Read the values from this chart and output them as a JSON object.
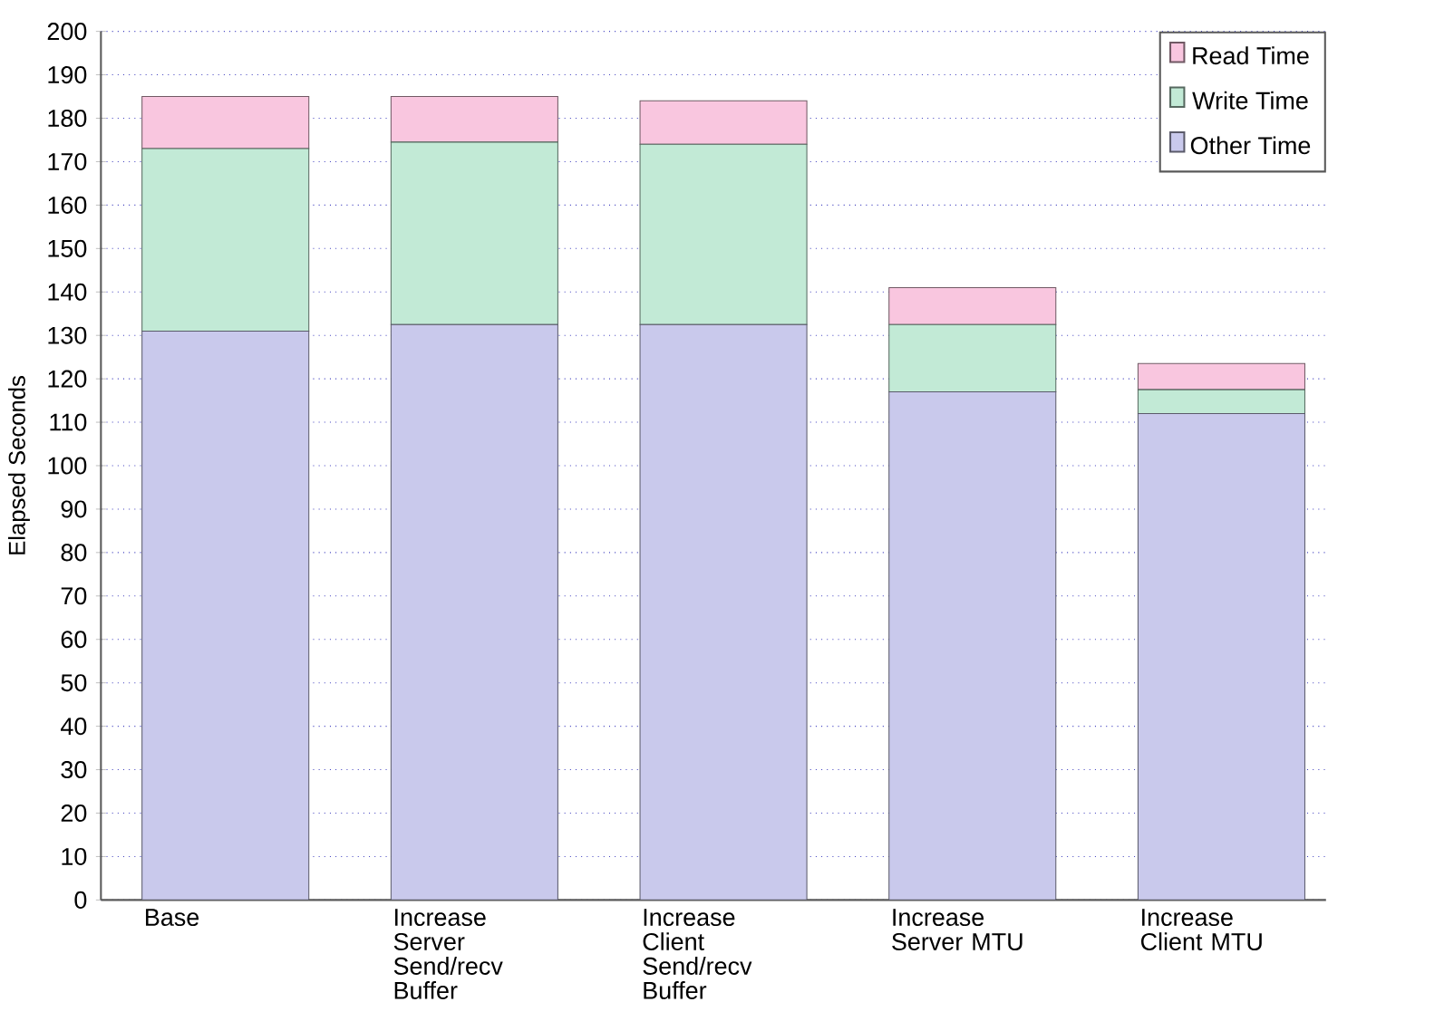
{
  "chart_data": {
    "type": "bar",
    "ylabel": "Elapsed Seconds",
    "stacked": true,
    "categories": [
      "Base",
      "Increase Server Send/recv Buffer",
      "Increase Client Send/recv Buffer",
      "Increase Server MTU",
      "Increase Client MTU"
    ],
    "series": [
      {
        "name": "Other Time",
        "color": "#c9c9ec",
        "values": [
          131,
          132.5,
          132.5,
          117,
          112
        ]
      },
      {
        "name": "Write Time",
        "color": "#c2ead6",
        "values": [
          42,
          42,
          41.5,
          15.5,
          5.5
        ]
      },
      {
        "name": "Read Time",
        "color": "#f9c6df",
        "values": [
          12,
          10.5,
          10,
          8.5,
          6
        ]
      }
    ],
    "ylim": [
      0,
      200
    ],
    "yticks": [
      0,
      10,
      20,
      30,
      40,
      50,
      60,
      70,
      80,
      90,
      100,
      110,
      120,
      130,
      140,
      150,
      160,
      170,
      180,
      190,
      200
    ],
    "grid": "y",
    "legend": "top right"
  }
}
